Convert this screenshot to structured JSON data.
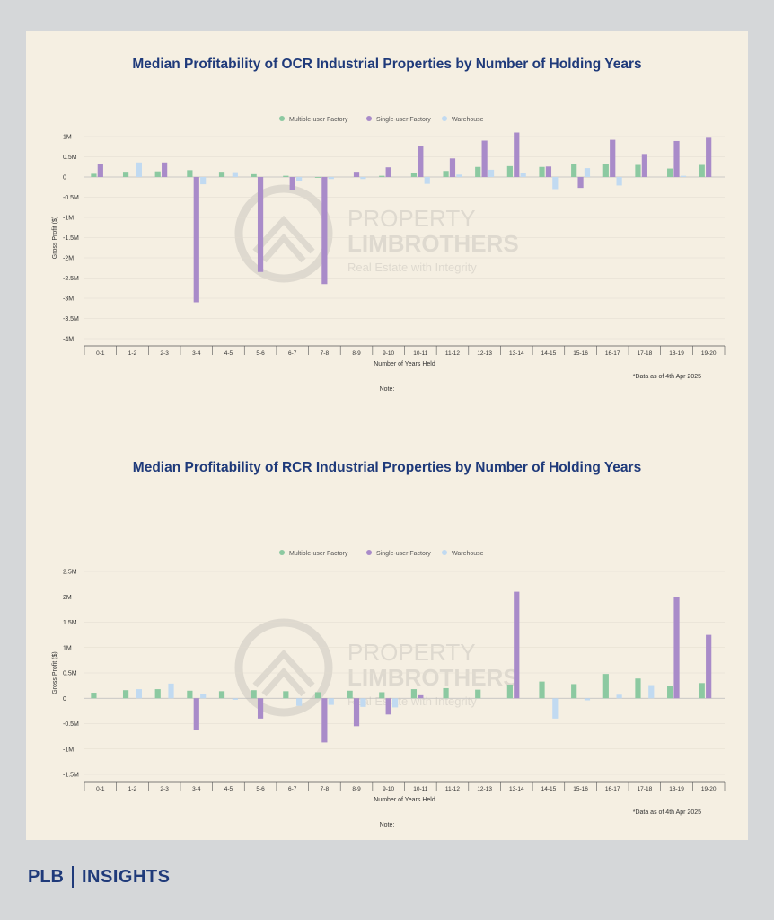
{
  "colors": {
    "multiple": "#8cc9a1",
    "single": "#a98bc9",
    "warehouse": "#c1daf1",
    "title": "#1f3a7a",
    "axis_text": "#333333"
  },
  "watermark": {
    "line1": "PROPERTY",
    "line2": "LIMBROTHERS",
    "line3": "Real Estate with Integrity"
  },
  "brand": {
    "left": "PLB",
    "right": "INSIGHTS"
  },
  "chart_data": [
    {
      "type": "bar",
      "title": "Median Profitability of OCR Industrial Properties by Number of Holding Years",
      "xlabel": "Number of Years Held",
      "ylabel": "Gross Profit ($)",
      "categories": [
        "0-1",
        "1-2",
        "2-3",
        "3-4",
        "4-5",
        "5-6",
        "6-7",
        "7-8",
        "8-9",
        "9-10",
        "10-11",
        "11-12",
        "12-13",
        "13-14",
        "14-15",
        "15-16",
        "16-17",
        "17-18",
        "18-19",
        "19-20"
      ],
      "ylim": [
        -4000000,
        1000000
      ],
      "yticks": [
        1000000,
        500000,
        0,
        -500000,
        -1000000,
        -1500000,
        -2000000,
        -2500000,
        -3000000,
        -3500000,
        -4000000
      ],
      "ytick_labels": [
        "1M",
        "0.5M",
        "0",
        "-0.5M",
        "-1M",
        "-1.5M",
        "-2M",
        "-2.5M",
        "-3M",
        "-3.5M",
        "-4M"
      ],
      "legend": [
        "Multiple-user Factory",
        "Single-user Factory",
        "Warehouse"
      ],
      "legend_position": "top-center",
      "series": [
        {
          "name": "Multiple-user Factory",
          "values": [
            80000,
            130000,
            140000,
            170000,
            130000,
            70000,
            30000,
            -20000,
            0,
            30000,
            100000,
            150000,
            250000,
            270000,
            250000,
            320000,
            320000,
            300000,
            210000,
            300000
          ]
        },
        {
          "name": "Single-user Factory",
          "values": [
            330000,
            0,
            360000,
            -3100000,
            0,
            -2350000,
            -320000,
            -2650000,
            130000,
            240000,
            760000,
            460000,
            900000,
            1100000,
            260000,
            -270000,
            920000,
            570000,
            890000,
            970000
          ]
        },
        {
          "name": "Warehouse",
          "values": [
            0,
            360000,
            0,
            -180000,
            120000,
            0,
            -100000,
            -50000,
            -50000,
            0,
            -170000,
            60000,
            180000,
            100000,
            -300000,
            220000,
            -210000,
            0,
            30000,
            0
          ]
        }
      ],
      "footnote": "*Data as of 4th Apr 2025",
      "note": "Note:"
    },
    {
      "type": "bar",
      "title": "Median Profitability of RCR Industrial Properties by Number of Holding Years",
      "xlabel": "Number of Years Held",
      "ylabel": "Gross Profit ($)",
      "categories": [
        "0-1",
        "1-2",
        "2-3",
        "3-4",
        "4-5",
        "5-6",
        "6-7",
        "7-8",
        "8-9",
        "9-10",
        "10-11",
        "11-12",
        "12-13",
        "13-14",
        "14-15",
        "15-16",
        "16-17",
        "17-18",
        "18-19",
        "19-20"
      ],
      "ylim": [
        -1500000,
        2500000
      ],
      "yticks": [
        2500000,
        2000000,
        1500000,
        1000000,
        500000,
        0,
        -500000,
        -1000000,
        -1500000
      ],
      "ytick_labels": [
        "2.5M",
        "2M",
        "1.5M",
        "1M",
        "0.5M",
        "0",
        "-0.5M",
        "-1M",
        "-1.5M"
      ],
      "legend": [
        "Multiple-user Factory",
        "Single-user Factory",
        "Warehouse"
      ],
      "legend_position": "top-center",
      "series": [
        {
          "name": "Multiple-user Factory",
          "values": [
            110000,
            160000,
            180000,
            150000,
            140000,
            160000,
            140000,
            120000,
            150000,
            120000,
            180000,
            200000,
            170000,
            270000,
            330000,
            280000,
            480000,
            390000,
            250000,
            300000
          ]
        },
        {
          "name": "Single-user Factory",
          "values": [
            0,
            0,
            0,
            -620000,
            0,
            -400000,
            0,
            -870000,
            -550000,
            -320000,
            60000,
            0,
            0,
            2100000,
            0,
            0,
            0,
            0,
            2000000,
            1250000
          ]
        },
        {
          "name": "Warehouse",
          "values": [
            0,
            180000,
            290000,
            80000,
            -30000,
            0,
            -150000,
            -130000,
            -170000,
            -180000,
            0,
            0,
            0,
            0,
            -400000,
            -40000,
            70000,
            260000,
            0,
            0
          ]
        }
      ],
      "footnote": "*Data as of 4th Apr 2025",
      "note": "Note:"
    }
  ]
}
